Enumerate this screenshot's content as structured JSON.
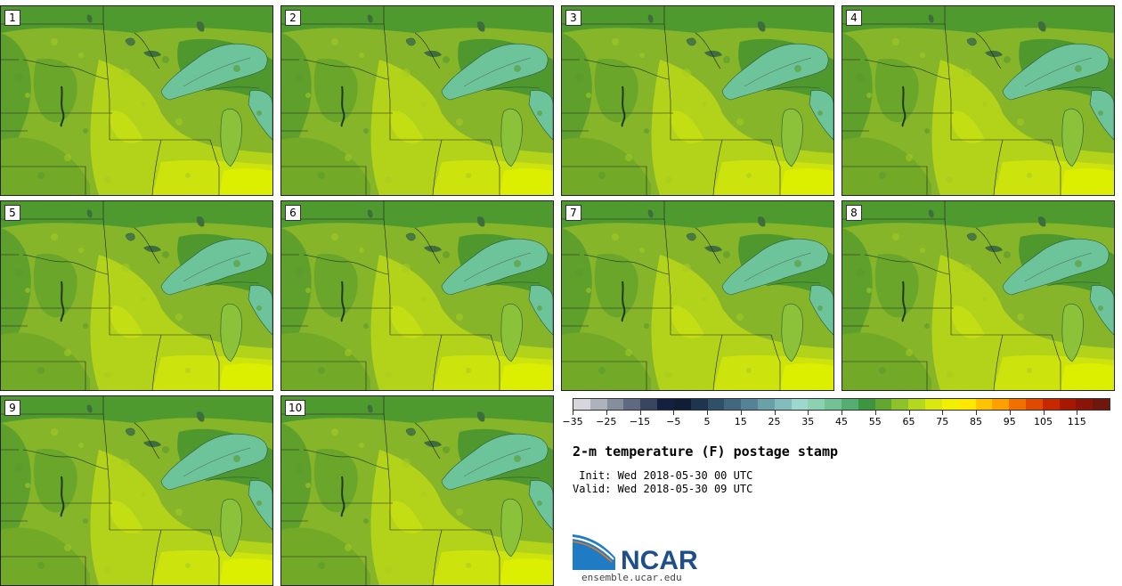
{
  "panels": [
    {
      "label": "1"
    },
    {
      "label": "2"
    },
    {
      "label": "3"
    },
    {
      "label": "4"
    },
    {
      "label": "5"
    },
    {
      "label": "6"
    },
    {
      "label": "7"
    },
    {
      "label": "8"
    },
    {
      "label": "9"
    },
    {
      "label": "10"
    }
  ],
  "colorbar": {
    "colors": [
      "#d6d6dc",
      "#aeb2bc",
      "#868e9e",
      "#5f6a80",
      "#3a4560",
      "#152040",
      "#0f1d35",
      "#1e3550",
      "#2f5068",
      "#42687f",
      "#558296",
      "#6aa0a8",
      "#82bcbc",
      "#9ed8cc",
      "#8cd2b2",
      "#72c296",
      "#56ad72",
      "#3e9540",
      "#62a830",
      "#8cc22a",
      "#b4d81e",
      "#d8e810",
      "#f0f000",
      "#ffe800",
      "#ffc400",
      "#ffa000",
      "#f07000",
      "#e04a00",
      "#c82800",
      "#a81800",
      "#8a1408",
      "#6e180c"
    ],
    "tick_labels": [
      "−35",
      "−25",
      "−15",
      "−5",
      "5",
      "15",
      "25",
      "35",
      "45",
      "55",
      "65",
      "75",
      "85",
      "95",
      "105",
      "115"
    ]
  },
  "title": "2-m temperature (F) postage stamp",
  "init": " Init: Wed 2018-05-30 00 UTC",
  "valid": "Valid: Wed 2018-05-30 09 UTC",
  "logo": {
    "text": "NCAR",
    "url": "ensemble.ucar.edu"
  }
}
